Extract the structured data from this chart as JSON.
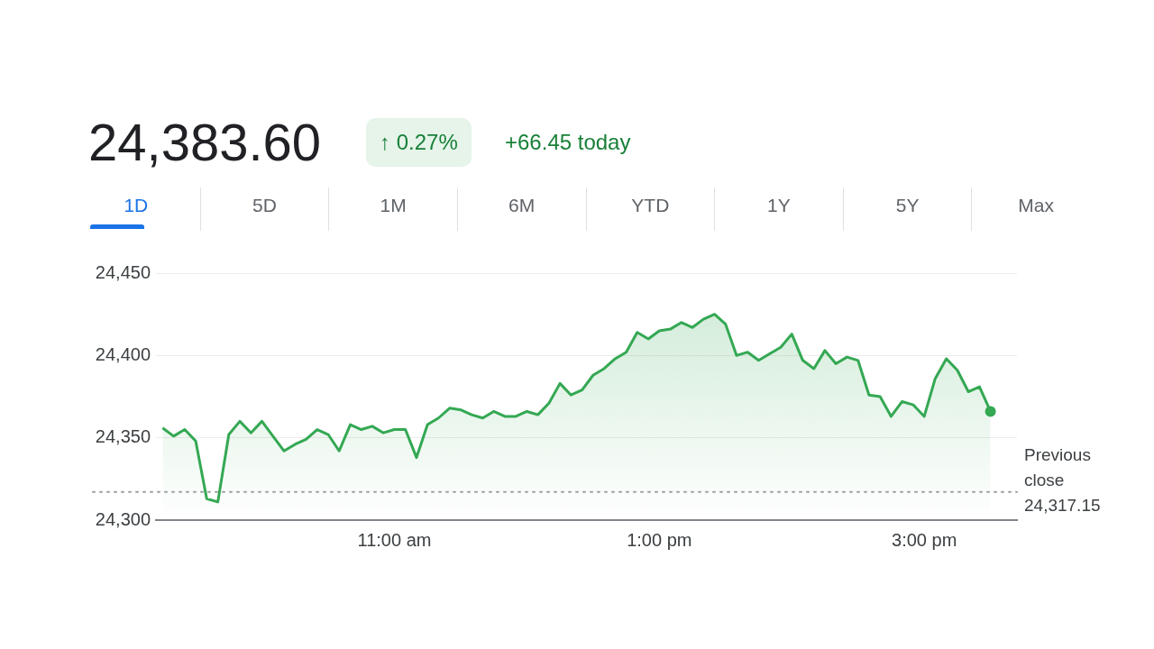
{
  "chart_data": {
    "type": "area",
    "title": "24,383.60",
    "annotations": [
      "↑ 0.27%",
      "+66.45 today",
      "1D",
      "5D",
      "1M",
      "6M",
      "YTD",
      "1Y",
      "5Y",
      "Max"
    ],
    "x": [
      9.25,
      9.333,
      9.417,
      9.5,
      9.583,
      9.667,
      9.75,
      9.833,
      9.917,
      10,
      10.083,
      10.167,
      10.25,
      10.333,
      10.417,
      10.5,
      10.583,
      10.667,
      10.75,
      10.833,
      10.917,
      11,
      11.083,
      11.167,
      11.25,
      11.333,
      11.417,
      11.5,
      11.583,
      11.667,
      11.75,
      11.833,
      11.917,
      12,
      12.083,
      12.167,
      12.25,
      12.333,
      12.417,
      12.5,
      12.583,
      12.667,
      12.75,
      12.833,
      12.917,
      13,
      13.083,
      13.167,
      13.25,
      13.333,
      13.417,
      13.5,
      13.583,
      13.667,
      13.75,
      13.833,
      13.917,
      14,
      14.083,
      14.167,
      14.25,
      14.333,
      14.417,
      14.5,
      14.583,
      14.667,
      14.75,
      14.833,
      14.917,
      15,
      15.083,
      15.167,
      15.25,
      15.333,
      15.417,
      15.5
    ],
    "series": [
      {
        "color": "#34a853",
        "values": [
          24356,
          24351,
          24355,
          24348,
          24313,
          24311,
          24352,
          24360,
          24353,
          24360,
          24351,
          24342,
          24346,
          24349,
          24355,
          24352,
          24342,
          24358,
          24355,
          24357,
          24353,
          24355,
          24355,
          24338,
          24358,
          24362,
          24368,
          24367,
          24364,
          24362,
          24366,
          24363,
          24363,
          24366,
          24364,
          24371,
          24383,
          24376,
          24379,
          24388,
          24392,
          24398,
          24402,
          24414,
          24410,
          24415,
          24416,
          24420,
          24417,
          24422,
          24425,
          24419,
          24400,
          24402,
          24397,
          24401,
          24405,
          24413,
          24397,
          24392,
          24403,
          24395,
          24399,
          24397,
          24376,
          24375,
          24363,
          24372,
          24370,
          24363,
          24386,
          24398,
          24391,
          24378,
          24381,
          24366
        ]
      }
    ],
    "xlim": [
      9.2,
      15.7
    ],
    "xticks": [
      {
        "value": 11,
        "label": "11:00 am"
      },
      {
        "value": 13,
        "label": "1:00 pm"
      },
      {
        "value": 15,
        "label": "3:00 pm"
      }
    ],
    "ylim": [
      24300,
      24450
    ],
    "yticks": [
      {
        "value": 24300,
        "label": "24,300"
      },
      {
        "value": 24350,
        "label": "24,350"
      },
      {
        "value": 24400,
        "label": "24,400"
      },
      {
        "value": 24450,
        "label": "24,450"
      }
    ],
    "ref_lines": [
      {
        "axis": "y",
        "value": 24317.15,
        "label": "Previous close 24,317.15",
        "color": "#9aa0a6",
        "line_style": "dotted"
      }
    ],
    "grid": "y",
    "legend": false,
    "marker": "none",
    "line_style": "solid"
  }
}
